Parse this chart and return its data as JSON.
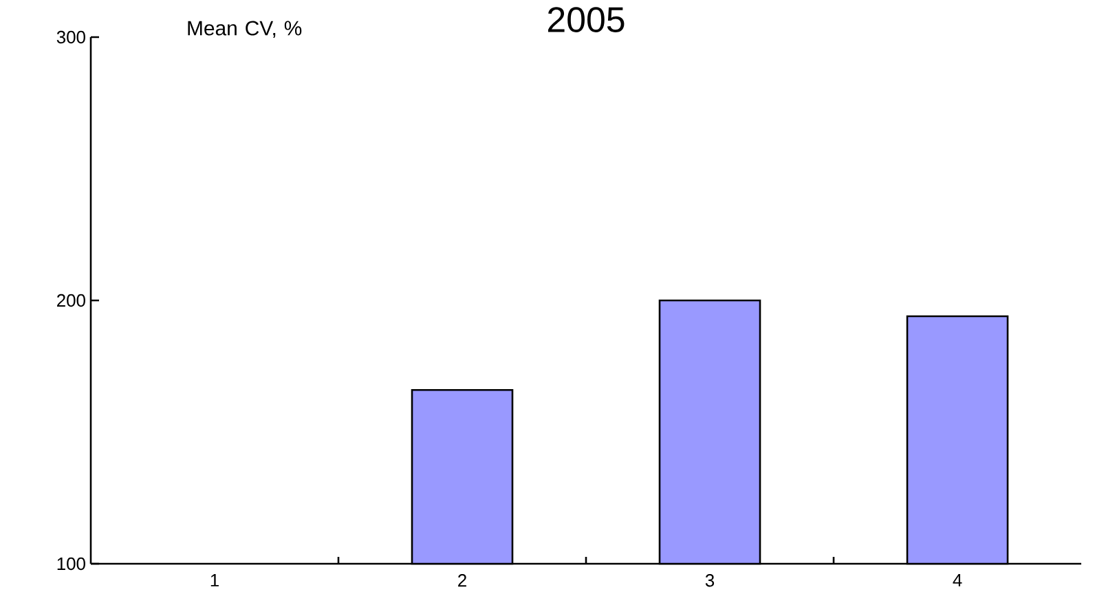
{
  "chart_data": {
    "type": "bar",
    "title": "2005",
    "ylabel": "Mean CV, %",
    "categories": [
      "1",
      "2",
      "3",
      "4"
    ],
    "values": [
      null,
      166,
      200,
      194
    ],
    "color": "#9999ff",
    "ylim": [
      100,
      300
    ],
    "yticks": [
      100,
      200,
      300
    ],
    "grid": false
  }
}
